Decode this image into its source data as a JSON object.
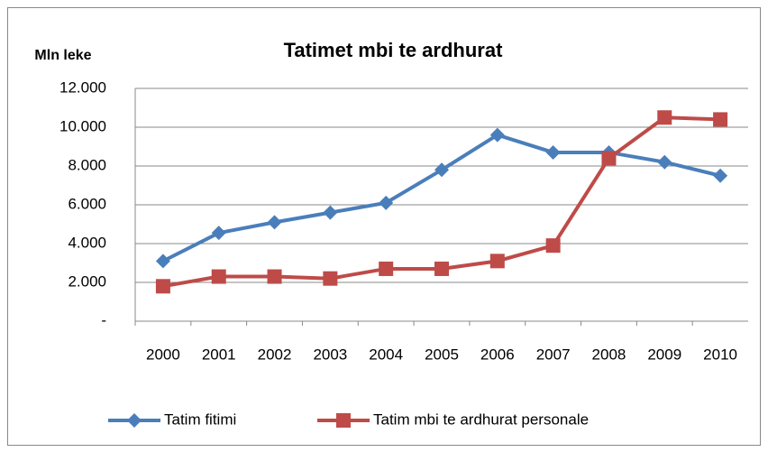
{
  "chart_data": {
    "type": "line",
    "title": "Tatimet mbi te ardhurat",
    "y_label": "Mln leke",
    "categories": [
      "2000",
      "2001",
      "2002",
      "2003",
      "2004",
      "2005",
      "2006",
      "2007",
      "2008",
      "2009",
      "2010"
    ],
    "series": [
      {
        "name": "Tatim fitimi",
        "color": "#4a7ebb",
        "marker": "diamond",
        "values": [
          3100,
          4550,
          5100,
          5600,
          6100,
          7800,
          9600,
          8700,
          8700,
          8200,
          7500
        ]
      },
      {
        "name": "Tatim mbi te ardhurat personale",
        "color": "#be4b48",
        "marker": "square",
        "values": [
          1800,
          2300,
          2300,
          2200,
          2700,
          2700,
          3100,
          3900,
          8400,
          10500,
          10400
        ]
      }
    ],
    "ylim": [
      0,
      12000
    ],
    "yticks": [
      {
        "value": 0,
        "label": "-"
      },
      {
        "value": 2000,
        "label": "2.000"
      },
      {
        "value": 4000,
        "label": "4.000"
      },
      {
        "value": 6000,
        "label": "6.000"
      },
      {
        "value": 8000,
        "label": "8.000"
      },
      {
        "value": 10000,
        "label": "10.000"
      },
      {
        "value": 12000,
        "label": "12.000"
      }
    ],
    "grid": true,
    "legend": "bottom"
  }
}
